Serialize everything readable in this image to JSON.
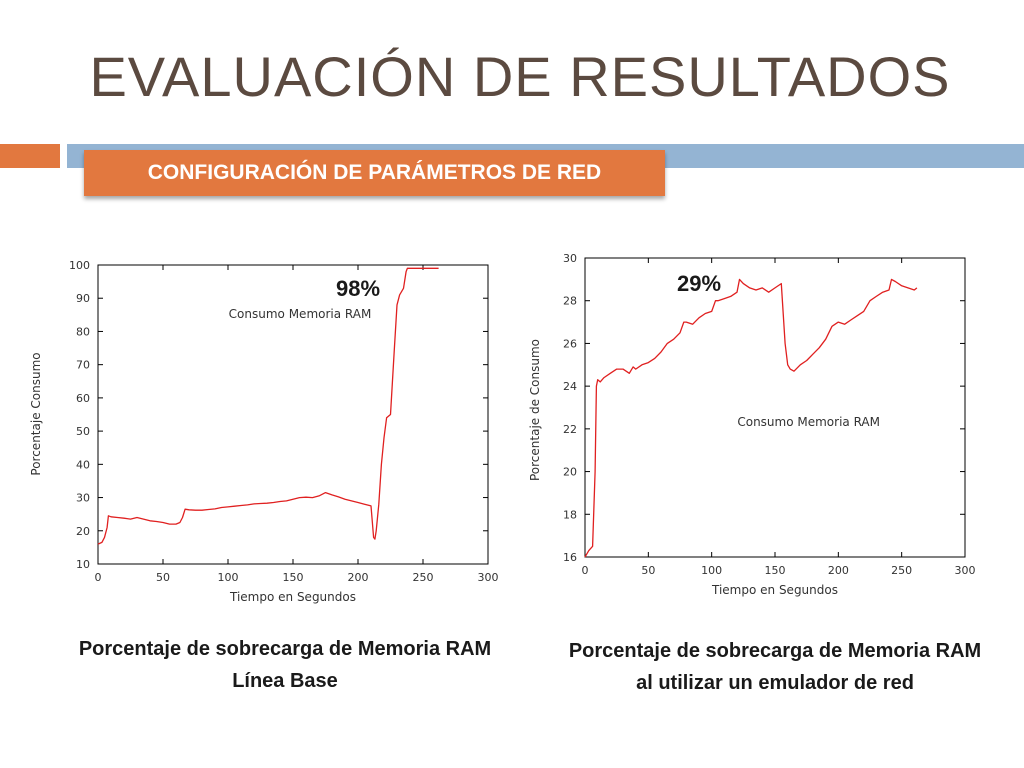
{
  "slide": {
    "title": "EVALUACIÓN DE RESULTADOS",
    "subtitle": "CONFIGURACIÓN DE PARÁMETROS DE RED",
    "colors": {
      "accent": "#e2783f",
      "band": "#94b4d3",
      "title": "#5b4a40",
      "line": "#e02020"
    }
  },
  "captions": [
    {
      "line1": "Porcentaje de sobrecarga de Memoria RAM",
      "line2": "Línea Base"
    },
    {
      "line1": "Porcentaje de sobrecarga de Memoria RAM",
      "line2": "al utilizar un emulador de red"
    }
  ],
  "chart_data": [
    {
      "type": "line",
      "title": "",
      "xlabel": "Tiempo en Segundos",
      "ylabel": "Porcentaje Consumo",
      "xlim": [
        0,
        300
      ],
      "ylim": [
        10,
        100
      ],
      "xticks": [
        0,
        50,
        100,
        150,
        200,
        250,
        300
      ],
      "yticks": [
        10,
        20,
        30,
        40,
        50,
        60,
        70,
        80,
        90,
        100
      ],
      "grid": false,
      "legend_position": "top-center",
      "annotation": "98%",
      "series": [
        {
          "name": "Consumo Memoria RAM",
          "color": "#e02020",
          "x": [
            0,
            3,
            5,
            7,
            8,
            10,
            15,
            20,
            25,
            30,
            35,
            40,
            45,
            50,
            55,
            60,
            63,
            65,
            67,
            70,
            75,
            80,
            85,
            90,
            95,
            100,
            105,
            110,
            115,
            120,
            125,
            130,
            135,
            140,
            145,
            150,
            155,
            160,
            165,
            170,
            175,
            180,
            185,
            190,
            195,
            200,
            205,
            210,
            212,
            213,
            214,
            216,
            218,
            220,
            222,
            225,
            228,
            230,
            232,
            235,
            237,
            238,
            240,
            245,
            250,
            255,
            260,
            262
          ],
          "y": [
            16,
            16.5,
            18,
            21,
            24.5,
            24.2,
            24,
            23.8,
            23.5,
            24,
            23.5,
            23,
            22.8,
            22.5,
            22,
            22,
            22.5,
            24,
            26.5,
            26.3,
            26.2,
            26.2,
            26.4,
            26.6,
            27,
            27.2,
            27.4,
            27.6,
            27.8,
            28.1,
            28.2,
            28.3,
            28.5,
            28.8,
            29,
            29.5,
            30,
            30.1,
            30,
            30.5,
            31.5,
            30.8,
            30.2,
            29.5,
            29,
            28.5,
            28,
            27.5,
            18,
            17.5,
            20,
            28,
            40,
            48,
            54,
            55,
            75,
            88,
            91,
            93,
            98,
            99,
            99,
            99,
            99,
            99,
            99,
            99
          ]
        }
      ]
    },
    {
      "type": "line",
      "title": "",
      "xlabel": "Tiempo en Segundos",
      "ylabel": "Porcentaje de Consumo",
      "xlim": [
        0,
        300
      ],
      "ylim": [
        16,
        30
      ],
      "xticks": [
        0,
        50,
        100,
        150,
        200,
        250,
        300
      ],
      "yticks": [
        16,
        18,
        20,
        22,
        24,
        26,
        28,
        30
      ],
      "grid": false,
      "legend_position": "middle-right",
      "annotation": "29%",
      "series": [
        {
          "name": "Consumo Memoria RAM",
          "color": "#e02020",
          "x": [
            0,
            3,
            6,
            8,
            9,
            10,
            12,
            15,
            20,
            25,
            30,
            35,
            38,
            40,
            45,
            50,
            55,
            60,
            65,
            70,
            75,
            78,
            80,
            85,
            90,
            95,
            100,
            103,
            105,
            110,
            115,
            120,
            122,
            125,
            130,
            135,
            140,
            145,
            150,
            155,
            158,
            160,
            162,
            165,
            170,
            175,
            180,
            185,
            190,
            195,
            200,
            205,
            210,
            215,
            220,
            225,
            230,
            235,
            240,
            242,
            245,
            250,
            255,
            260,
            262
          ],
          "y": [
            16,
            16.3,
            16.5,
            20,
            24,
            24.3,
            24.2,
            24.4,
            24.6,
            24.8,
            24.8,
            24.6,
            24.9,
            24.8,
            25,
            25.1,
            25.3,
            25.6,
            26,
            26.2,
            26.5,
            27,
            27,
            26.9,
            27.2,
            27.4,
            27.5,
            28,
            28,
            28.1,
            28.2,
            28.4,
            29,
            28.8,
            28.6,
            28.5,
            28.6,
            28.4,
            28.6,
            28.8,
            26,
            25,
            24.8,
            24.7,
            25,
            25.2,
            25.5,
            25.8,
            26.2,
            26.8,
            27,
            26.9,
            27.1,
            27.3,
            27.5,
            28,
            28.2,
            28.4,
            28.5,
            29,
            28.9,
            28.7,
            28.6,
            28.5,
            28.6
          ]
        }
      ]
    }
  ]
}
